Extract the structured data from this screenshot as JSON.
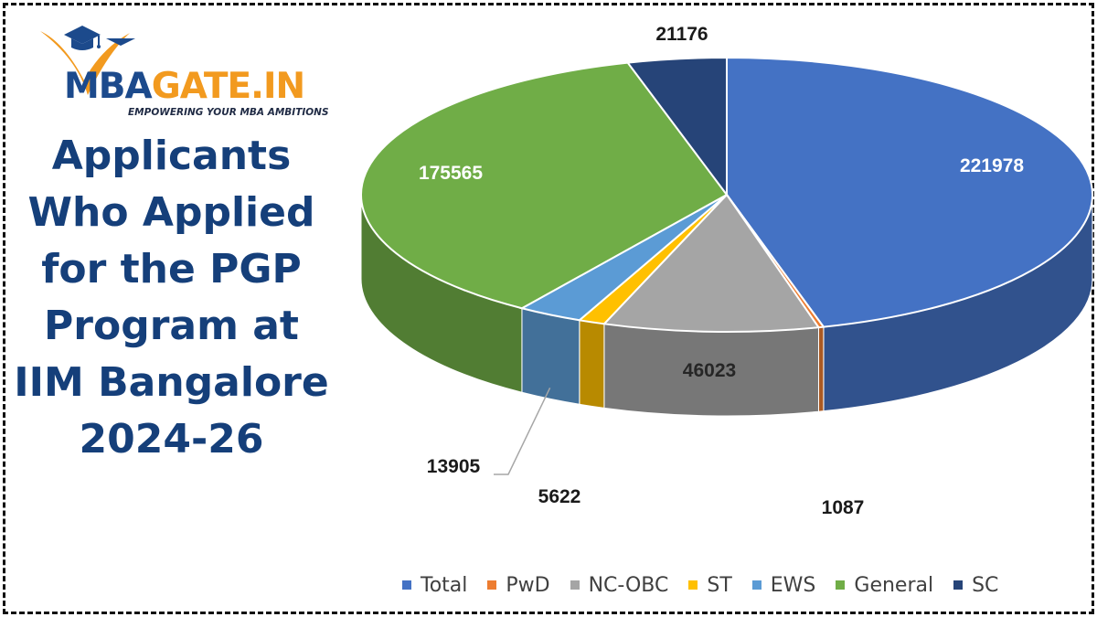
{
  "brand": {
    "name_part1": "MBA",
    "name_part2": "GATE.IN",
    "tagline": "EMPOWERING YOUR MBA AMBITIONS",
    "colors": {
      "primary": "#1c4a8c",
      "accent": "#f29a1f"
    }
  },
  "title": "Applicants Who Applied for the PGP Program at IIM Bangalore 2024-26",
  "chart_data": {
    "type": "pie",
    "variant": "3d",
    "title": "Applicants Who Applied for the PGP Program at IIM Bangalore 2024-26",
    "categories": [
      "Total",
      "PwD",
      "NC-OBC",
      "ST",
      "EWS",
      "General",
      "SC"
    ],
    "values": [
      221978,
      1087,
      46023,
      5622,
      13905,
      175565,
      21176
    ],
    "colors": [
      "#4472c4",
      "#ed7d31",
      "#a5a5a5",
      "#ffc000",
      "#5b9bd5",
      "#70ad47",
      "#264478"
    ],
    "data_labels": [
      "221978",
      "1087",
      "46023",
      "5622",
      "13905",
      "175565",
      "21176"
    ],
    "legend": {
      "position": "bottom-right"
    }
  }
}
